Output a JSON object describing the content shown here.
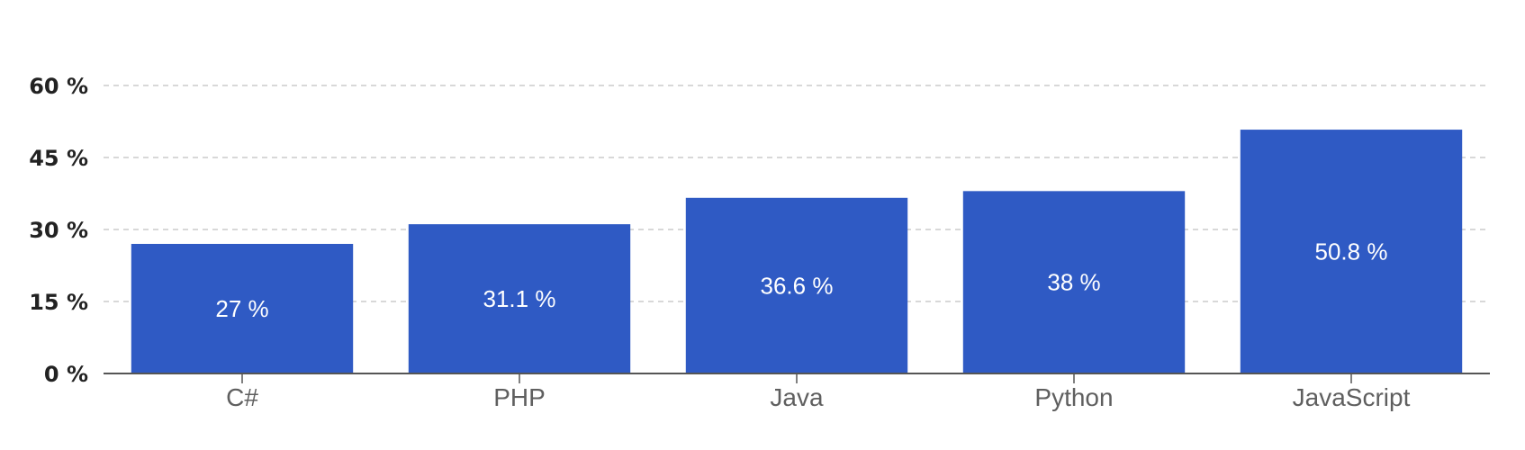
{
  "chart_data": {
    "type": "bar",
    "title": "",
    "xlabel": "",
    "ylabel": "",
    "categories": [
      "C#",
      "PHP",
      "Java",
      "Python",
      "JavaScript"
    ],
    "values": [
      27,
      31.1,
      36.6,
      38,
      50.8
    ],
    "value_labels": [
      "27 %",
      "31.1 %",
      "36.6 %",
      "38 %",
      "50.8 %"
    ],
    "yticks": [
      0,
      15,
      30,
      45,
      60
    ],
    "ytick_labels": [
      "0 %",
      "15 %",
      "30 %",
      "45 %",
      "60 %"
    ],
    "ylim": [
      0,
      60
    ],
    "grid": true,
    "legend": "none",
    "bar_color": "#2f5ac4",
    "grid_color": "#cccccc",
    "axis_color": "#555555"
  }
}
